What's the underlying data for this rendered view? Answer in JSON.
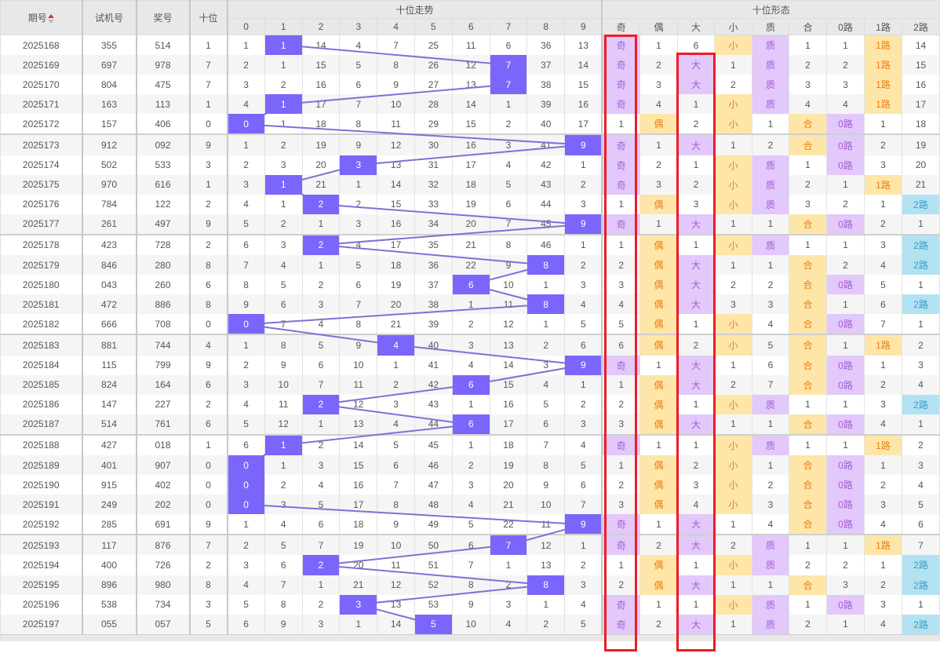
{
  "headers": {
    "issue": "期号",
    "trial": "试机号",
    "prize": "奖号",
    "tens": "十位",
    "trend_group": "十位走势",
    "trend_digits": [
      "0",
      "1",
      "2",
      "3",
      "4",
      "5",
      "6",
      "7",
      "8",
      "9"
    ],
    "shape_group": "十位形态",
    "shape_cols": [
      "奇",
      "偶",
      "大",
      "小",
      "质",
      "合",
      "0路",
      "1路",
      "2路"
    ]
  },
  "colors": {
    "hit": "#7a66fb",
    "line": "#7b72d6",
    "purple": "#e2c8fb",
    "orange": "#fde6a8",
    "blue": "#b2e2f1",
    "highlight_box": "#ee1c25"
  },
  "sort_icon": "sort-up-down-icon",
  "highlight_boxes": [
    {
      "column": "奇",
      "from_issue": "2025168",
      "to_issue": "2025197"
    },
    {
      "column": "大",
      "from_issue": "2025169",
      "to_issue": "2025197"
    }
  ],
  "rows": [
    {
      "issue": "2025168",
      "trial": "355",
      "prize": "514",
      "tens": "1",
      "trend": [
        "1",
        "1",
        "14",
        "4",
        "7",
        "25",
        "11",
        "6",
        "36",
        "13"
      ],
      "shape": [
        "奇",
        "1",
        "6",
        "小",
        "质",
        "1",
        "1",
        "1路",
        "14"
      ]
    },
    {
      "issue": "2025169",
      "trial": "697",
      "prize": "978",
      "tens": "7",
      "trend": [
        "2",
        "1",
        "15",
        "5",
        "8",
        "26",
        "12",
        "7",
        "37",
        "14"
      ],
      "shape": [
        "奇",
        "2",
        "大",
        "1",
        "质",
        "2",
        "2",
        "1路",
        "15"
      ]
    },
    {
      "issue": "2025170",
      "trial": "804",
      "prize": "475",
      "tens": "7",
      "trend": [
        "3",
        "2",
        "16",
        "6",
        "9",
        "27",
        "13",
        "7",
        "38",
        "15"
      ],
      "shape": [
        "奇",
        "3",
        "大",
        "2",
        "质",
        "3",
        "3",
        "1路",
        "16"
      ]
    },
    {
      "issue": "2025171",
      "trial": "163",
      "prize": "113",
      "tens": "1",
      "trend": [
        "4",
        "1",
        "17",
        "7",
        "10",
        "28",
        "14",
        "1",
        "39",
        "16"
      ],
      "shape": [
        "奇",
        "4",
        "1",
        "小",
        "质",
        "4",
        "4",
        "1路",
        "17"
      ]
    },
    {
      "issue": "2025172",
      "trial": "157",
      "prize": "406",
      "tens": "0",
      "trend": [
        "0",
        "1",
        "18",
        "8",
        "11",
        "29",
        "15",
        "2",
        "40",
        "17"
      ],
      "shape": [
        "1",
        "偶",
        "2",
        "小",
        "1",
        "合",
        "0路",
        "1",
        "18"
      ]
    },
    {
      "issue": "2025173",
      "trial": "912",
      "prize": "092",
      "tens": "9",
      "trend": [
        "1",
        "2",
        "19",
        "9",
        "12",
        "30",
        "16",
        "3",
        "41",
        "9"
      ],
      "shape": [
        "奇",
        "1",
        "大",
        "1",
        "2",
        "合",
        "0路",
        "2",
        "19"
      ]
    },
    {
      "issue": "2025174",
      "trial": "502",
      "prize": "533",
      "tens": "3",
      "trend": [
        "2",
        "3",
        "20",
        "3",
        "13",
        "31",
        "17",
        "4",
        "42",
        "1"
      ],
      "shape": [
        "奇",
        "2",
        "1",
        "小",
        "质",
        "1",
        "0路",
        "3",
        "20"
      ]
    },
    {
      "issue": "2025175",
      "trial": "970",
      "prize": "616",
      "tens": "1",
      "trend": [
        "3",
        "1",
        "21",
        "1",
        "14",
        "32",
        "18",
        "5",
        "43",
        "2"
      ],
      "shape": [
        "奇",
        "3",
        "2",
        "小",
        "质",
        "2",
        "1",
        "1路",
        "21"
      ]
    },
    {
      "issue": "2025176",
      "trial": "784",
      "prize": "122",
      "tens": "2",
      "trend": [
        "4",
        "1",
        "2",
        "2",
        "15",
        "33",
        "19",
        "6",
        "44",
        "3"
      ],
      "shape": [
        "1",
        "偶",
        "3",
        "小",
        "质",
        "3",
        "2",
        "1",
        "2路"
      ]
    },
    {
      "issue": "2025177",
      "trial": "261",
      "prize": "497",
      "tens": "9",
      "trend": [
        "5",
        "2",
        "1",
        "3",
        "16",
        "34",
        "20",
        "7",
        "45",
        "9"
      ],
      "shape": [
        "奇",
        "1",
        "大",
        "1",
        "1",
        "合",
        "0路",
        "2",
        "1"
      ]
    },
    {
      "issue": "2025178",
      "trial": "423",
      "prize": "728",
      "tens": "2",
      "trend": [
        "6",
        "3",
        "2",
        "4",
        "17",
        "35",
        "21",
        "8",
        "46",
        "1"
      ],
      "shape": [
        "1",
        "偶",
        "1",
        "小",
        "质",
        "1",
        "1",
        "3",
        "2路"
      ]
    },
    {
      "issue": "2025179",
      "trial": "846",
      "prize": "280",
      "tens": "8",
      "trend": [
        "7",
        "4",
        "1",
        "5",
        "18",
        "36",
        "22",
        "9",
        "8",
        "2"
      ],
      "shape": [
        "2",
        "偶",
        "大",
        "1",
        "1",
        "合",
        "2",
        "4",
        "2路"
      ]
    },
    {
      "issue": "2025180",
      "trial": "043",
      "prize": "260",
      "tens": "6",
      "trend": [
        "8",
        "5",
        "2",
        "6",
        "19",
        "37",
        "6",
        "10",
        "1",
        "3"
      ],
      "shape": [
        "3",
        "偶",
        "大",
        "2",
        "2",
        "合",
        "0路",
        "5",
        "1"
      ]
    },
    {
      "issue": "2025181",
      "trial": "472",
      "prize": "886",
      "tens": "8",
      "trend": [
        "9",
        "6",
        "3",
        "7",
        "20",
        "38",
        "1",
        "11",
        "8",
        "4"
      ],
      "shape": [
        "4",
        "偶",
        "大",
        "3",
        "3",
        "合",
        "1",
        "6",
        "2路"
      ]
    },
    {
      "issue": "2025182",
      "trial": "666",
      "prize": "708",
      "tens": "0",
      "trend": [
        "0",
        "7",
        "4",
        "8",
        "21",
        "39",
        "2",
        "12",
        "1",
        "5"
      ],
      "shape": [
        "5",
        "偶",
        "1",
        "小",
        "4",
        "合",
        "0路",
        "7",
        "1"
      ]
    },
    {
      "issue": "2025183",
      "trial": "881",
      "prize": "744",
      "tens": "4",
      "trend": [
        "1",
        "8",
        "5",
        "9",
        "4",
        "40",
        "3",
        "13",
        "2",
        "6"
      ],
      "shape": [
        "6",
        "偶",
        "2",
        "小",
        "5",
        "合",
        "1",
        "1路",
        "2"
      ]
    },
    {
      "issue": "2025184",
      "trial": "115",
      "prize": "799",
      "tens": "9",
      "trend": [
        "2",
        "9",
        "6",
        "10",
        "1",
        "41",
        "4",
        "14",
        "3",
        "9"
      ],
      "shape": [
        "奇",
        "1",
        "大",
        "1",
        "6",
        "合",
        "0路",
        "1",
        "3"
      ]
    },
    {
      "issue": "2025185",
      "trial": "824",
      "prize": "164",
      "tens": "6",
      "trend": [
        "3",
        "10",
        "7",
        "11",
        "2",
        "42",
        "6",
        "15",
        "4",
        "1"
      ],
      "shape": [
        "1",
        "偶",
        "大",
        "2",
        "7",
        "合",
        "0路",
        "2",
        "4"
      ]
    },
    {
      "issue": "2025186",
      "trial": "147",
      "prize": "227",
      "tens": "2",
      "trend": [
        "4",
        "11",
        "2",
        "12",
        "3",
        "43",
        "1",
        "16",
        "5",
        "2"
      ],
      "shape": [
        "2",
        "偶",
        "1",
        "小",
        "质",
        "1",
        "1",
        "3",
        "2路"
      ]
    },
    {
      "issue": "2025187",
      "trial": "514",
      "prize": "761",
      "tens": "6",
      "trend": [
        "5",
        "12",
        "1",
        "13",
        "4",
        "44",
        "6",
        "17",
        "6",
        "3"
      ],
      "shape": [
        "3",
        "偶",
        "大",
        "1",
        "1",
        "合",
        "0路",
        "4",
        "1"
      ]
    },
    {
      "issue": "2025188",
      "trial": "427",
      "prize": "018",
      "tens": "1",
      "trend": [
        "6",
        "1",
        "2",
        "14",
        "5",
        "45",
        "1",
        "18",
        "7",
        "4"
      ],
      "shape": [
        "奇",
        "1",
        "1",
        "小",
        "质",
        "1",
        "1",
        "1路",
        "2"
      ]
    },
    {
      "issue": "2025189",
      "trial": "401",
      "prize": "907",
      "tens": "0",
      "trend": [
        "0",
        "1",
        "3",
        "15",
        "6",
        "46",
        "2",
        "19",
        "8",
        "5"
      ],
      "shape": [
        "1",
        "偶",
        "2",
        "小",
        "1",
        "合",
        "0路",
        "1",
        "3"
      ]
    },
    {
      "issue": "2025190",
      "trial": "915",
      "prize": "402",
      "tens": "0",
      "trend": [
        "0",
        "2",
        "4",
        "16",
        "7",
        "47",
        "3",
        "20",
        "9",
        "6"
      ],
      "shape": [
        "2",
        "偶",
        "3",
        "小",
        "2",
        "合",
        "0路",
        "2",
        "4"
      ]
    },
    {
      "issue": "2025191",
      "trial": "249",
      "prize": "202",
      "tens": "0",
      "trend": [
        "0",
        "3",
        "5",
        "17",
        "8",
        "48",
        "4",
        "21",
        "10",
        "7"
      ],
      "shape": [
        "3",
        "偶",
        "4",
        "小",
        "3",
        "合",
        "0路",
        "3",
        "5"
      ]
    },
    {
      "issue": "2025192",
      "trial": "285",
      "prize": "691",
      "tens": "9",
      "trend": [
        "1",
        "4",
        "6",
        "18",
        "9",
        "49",
        "5",
        "22",
        "11",
        "9"
      ],
      "shape": [
        "奇",
        "1",
        "大",
        "1",
        "4",
        "合",
        "0路",
        "4",
        "6"
      ]
    },
    {
      "issue": "2025193",
      "trial": "117",
      "prize": "876",
      "tens": "7",
      "trend": [
        "2",
        "5",
        "7",
        "19",
        "10",
        "50",
        "6",
        "7",
        "12",
        "1"
      ],
      "shape": [
        "奇",
        "2",
        "大",
        "2",
        "质",
        "1",
        "1",
        "1路",
        "7"
      ]
    },
    {
      "issue": "2025194",
      "trial": "400",
      "prize": "726",
      "tens": "2",
      "trend": [
        "3",
        "6",
        "2",
        "20",
        "11",
        "51",
        "7",
        "1",
        "13",
        "2"
      ],
      "shape": [
        "1",
        "偶",
        "1",
        "小",
        "质",
        "2",
        "2",
        "1",
        "2路"
      ]
    },
    {
      "issue": "2025195",
      "trial": "896",
      "prize": "980",
      "tens": "8",
      "trend": [
        "4",
        "7",
        "1",
        "21",
        "12",
        "52",
        "8",
        "2",
        "8",
        "3"
      ],
      "shape": [
        "2",
        "偶",
        "大",
        "1",
        "1",
        "合",
        "3",
        "2",
        "2路"
      ]
    },
    {
      "issue": "2025196",
      "trial": "538",
      "prize": "734",
      "tens": "3",
      "trend": [
        "5",
        "8",
        "2",
        "3",
        "13",
        "53",
        "9",
        "3",
        "1",
        "4"
      ],
      "shape": [
        "奇",
        "1",
        "1",
        "小",
        "质",
        "1",
        "0路",
        "3",
        "1"
      ]
    },
    {
      "issue": "2025197",
      "trial": "055",
      "prize": "057",
      "tens": "5",
      "trend": [
        "6",
        "9",
        "3",
        "1",
        "14",
        "5",
        "10",
        "4",
        "2",
        "5"
      ],
      "shape": [
        "奇",
        "2",
        "大",
        "1",
        "质",
        "2",
        "1",
        "4",
        "2路"
      ]
    }
  ]
}
